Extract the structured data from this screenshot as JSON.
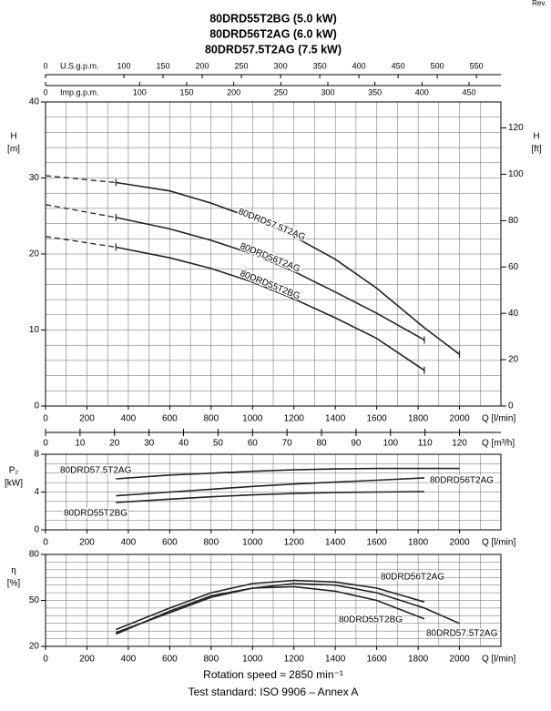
{
  "revision": "Rev.",
  "notes": [
    "Rotation speed ≈ 2850 min⁻¹",
    "Test standard: ISO 9906 – Annex A"
  ],
  "chart_data": [
    {
      "type": "line",
      "title": [
        "80DRD55T2BG (5.0 kW)",
        "80DRD56T2AG (6.0 kW)",
        "80DRD57.5T2AG (7.5 kW)"
      ],
      "x": [
        0,
        340,
        600,
        800,
        1000,
        1200,
        1400,
        1600,
        1830,
        2000
      ],
      "xlabel": "Q [l/min]",
      "ylabel": [
        "H",
        "[m]"
      ],
      "y2label": [
        "H",
        "[ft]"
      ],
      "xlim": [
        0,
        2200
      ],
      "xticks": [
        0,
        200,
        400,
        600,
        800,
        1000,
        1200,
        1400,
        1600,
        1800,
        2000
      ],
      "ylim": [
        0,
        40
      ],
      "yticks": [
        0,
        10,
        20,
        30,
        40
      ],
      "y2lim": [
        0,
        131.2
      ],
      "y2ticks": [
        0,
        20,
        40,
        60,
        80,
        100,
        120
      ],
      "grid": true,
      "xminor_step": 100,
      "yminor_step": 2,
      "color": "#222222",
      "series": [
        {
          "name": "80DRD57.5T2AG",
          "values": [
            30.3,
            29.4,
            28.3,
            26.7,
            24.7,
            22.3,
            19.3,
            15.5,
            10.3,
            6.8
          ]
        },
        {
          "name": "80DRD56T2AG",
          "values": [
            26.5,
            24.8,
            23.3,
            21.8,
            20.0,
            17.7,
            15.0,
            12.2,
            8.7,
            null
          ]
        },
        {
          "name": "80DRD55T2BG",
          "values": [
            22.3,
            20.9,
            19.5,
            18.1,
            16.3,
            14.1,
            11.6,
            8.9,
            4.7,
            null
          ]
        }
      ],
      "top_axes": [
        {
          "label": "U.S.g.p.m.",
          "xlim": [
            0,
            581.2
          ],
          "xticks": [
            0,
            100,
            150,
            200,
            250,
            300,
            350,
            400,
            450,
            500,
            550
          ]
        },
        {
          "label": "Imp.g.p.m.",
          "xlim": [
            0,
            483.9
          ],
          "xticks": [
            0,
            100,
            150,
            200,
            250,
            300,
            350,
            400,
            450
          ]
        }
      ],
      "bottom_axis": {
        "label": "Q [m³/h]",
        "xlim": [
          0,
          132
        ],
        "xticks": [
          0,
          10,
          20,
          30,
          40,
          50,
          60,
          70,
          80,
          90,
          100,
          110,
          120
        ]
      }
    },
    {
      "type": "line",
      "x": [
        340,
        600,
        800,
        1000,
        1200,
        1400,
        1600,
        1830,
        2000
      ],
      "xlabel": "Q [l/min]",
      "ylabel": [
        "P₂",
        "[kW]"
      ],
      "xlim": [
        0,
        2200
      ],
      "xticks": [
        0,
        200,
        400,
        600,
        800,
        1000,
        1200,
        1400,
        1600,
        1800,
        2000
      ],
      "ylim": [
        0,
        8
      ],
      "yticks": [
        0,
        4,
        8
      ],
      "grid": true,
      "xminor_step": 100,
      "yminor_step": 1,
      "color": "#222222",
      "series": [
        {
          "name": "80DRD57.5T2AG",
          "values": [
            5.4,
            5.8,
            6.0,
            6.2,
            6.35,
            6.45,
            6.5,
            6.5,
            6.5
          ]
        },
        {
          "name": "80DRD56T2AG",
          "values": [
            3.6,
            4.0,
            4.3,
            4.6,
            4.85,
            5.05,
            5.25,
            5.5,
            null
          ]
        },
        {
          "name": "80DRD55T2BG",
          "values": [
            2.9,
            3.25,
            3.5,
            3.7,
            3.85,
            3.95,
            4.0,
            4.05,
            null
          ]
        }
      ]
    },
    {
      "type": "line",
      "x": [
        340,
        600,
        800,
        1000,
        1200,
        1400,
        1600,
        1830,
        2000
      ],
      "xlabel": "Q [l/min]",
      "ylabel": [
        "η",
        "[%]"
      ],
      "xlim": [
        0,
        2200
      ],
      "xticks": [
        0,
        200,
        400,
        600,
        800,
        1000,
        1200,
        1400,
        1600,
        1800,
        2000
      ],
      "ylim": [
        20,
        80
      ],
      "yticks": [
        20,
        50,
        80
      ],
      "grid": true,
      "xminor_step": 100,
      "yminor_step": 5,
      "color": "#222222",
      "series": [
        {
          "name": "80DRD57.5T2AG",
          "values": [
            29,
            42,
            52,
            58,
            61,
            60,
            55,
            45,
            35
          ]
        },
        {
          "name": "80DRD56T2AG",
          "values": [
            31,
            45,
            55,
            61,
            63,
            62,
            58,
            49,
            null
          ]
        },
        {
          "name": "80DRD55T2BG",
          "values": [
            28,
            43,
            53,
            58,
            59,
            56,
            50,
            38,
            null
          ]
        }
      ]
    }
  ]
}
